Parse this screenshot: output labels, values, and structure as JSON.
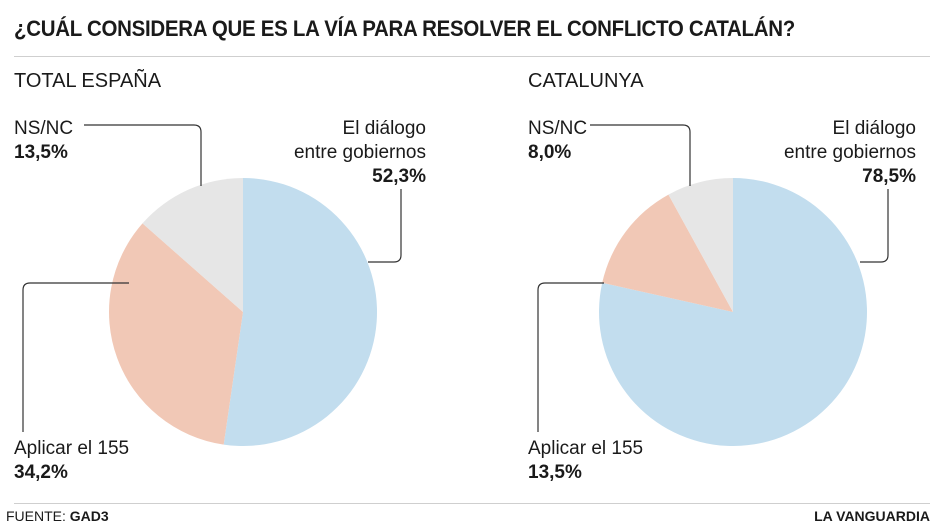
{
  "title": "¿CUÁL CONSIDERA QUE ES LA VÍA PARA RESOLVER EL CONFLICTO CATALÁN?",
  "source_label": "FUENTE:",
  "source_value": "GAD3",
  "brand": "LA VANGUARDIA",
  "colors": {
    "dialogo": "#c2ddee",
    "aplicar": "#f1c8b6",
    "nsnc": "#e6e6e6",
    "leader": "#333333"
  },
  "chart_data": [
    {
      "type": "pie",
      "title": "TOTAL ESPAÑA",
      "slices": [
        {
          "label_line1": "El diálogo",
          "label_line2": "entre gobiernos",
          "value": 52.3,
          "value_label": "52,3%"
        },
        {
          "label_line1": "Aplicar el 155",
          "value": 34.2,
          "value_label": "34,2%"
        },
        {
          "label_line1": "NS/NC",
          "value": 13.5,
          "value_label": "13,5%"
        }
      ]
    },
    {
      "type": "pie",
      "title": "CATALUNYA",
      "slices": [
        {
          "label_line1": "El diálogo",
          "label_line2": "entre gobiernos",
          "value": 78.5,
          "value_label": "78,5%"
        },
        {
          "label_line1": "Aplicar el 155",
          "value": 13.5,
          "value_label": "13,5%"
        },
        {
          "label_line1": "NS/NC",
          "value": 8.0,
          "value_label": "8,0%"
        }
      ]
    }
  ]
}
